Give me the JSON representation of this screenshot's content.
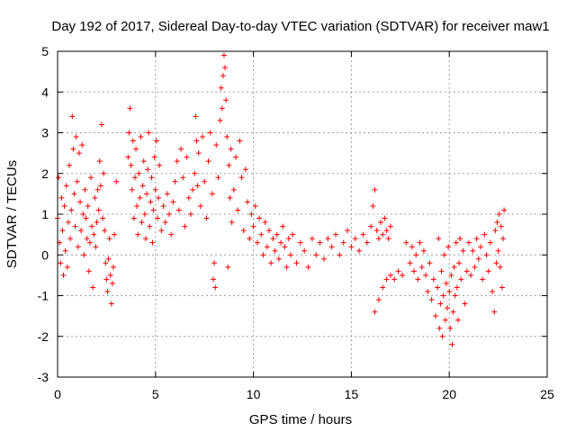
{
  "chart_data": {
    "type": "scatter",
    "title": "Day 192 of 2017, Sidereal Day-to-day VTEC variation (SDTVAR) for receiver maw1",
    "xlabel": "GPS time / hours",
    "ylabel": "SDTVAR / TECUs",
    "xlim": [
      0,
      25
    ],
    "ylim": [
      -3,
      5
    ],
    "xticks": [
      0,
      5,
      10,
      15,
      20,
      25
    ],
    "yticks": [
      -3,
      -2,
      -1,
      0,
      1,
      2,
      3,
      4,
      5
    ],
    "xtick_labels": [
      "0",
      "5",
      "10",
      "15",
      "20",
      "25"
    ],
    "ytick_labels": [
      "-3",
      "-2",
      "-1",
      "0",
      "1",
      "2",
      "3",
      "4",
      "5"
    ],
    "grid": true,
    "marker": "+",
    "color": "#ff0000",
    "series": [
      {
        "name": "maw1",
        "points": [
          [
            0.0,
            0.9
          ],
          [
            0.05,
            1.9
          ],
          [
            0.1,
            0.3
          ],
          [
            0.15,
            -0.2
          ],
          [
            0.2,
            1.4
          ],
          [
            0.25,
            0.6
          ],
          [
            0.3,
            -0.5
          ],
          [
            0.35,
            1.2
          ],
          [
            0.4,
            0.1
          ],
          [
            0.45,
            1.7
          ],
          [
            0.5,
            -0.3
          ],
          [
            0.55,
            0.8
          ],
          [
            0.6,
            2.2
          ],
          [
            0.65,
            0.4
          ],
          [
            0.7,
            1.1
          ],
          [
            0.75,
            3.4
          ],
          [
            0.8,
            2.6
          ],
          [
            0.85,
            1.5
          ],
          [
            0.9,
            0.7
          ],
          [
            0.95,
            2.9
          ],
          [
            1.0,
            1.8
          ],
          [
            1.05,
            0.2
          ],
          [
            1.1,
            2.5
          ],
          [
            1.15,
            1.3
          ],
          [
            1.2,
            0.6
          ],
          [
            1.25,
            2.7
          ],
          [
            1.3,
            1.0
          ],
          [
            1.35,
            0.0
          ],
          [
            1.4,
            1.6
          ],
          [
            1.45,
            0.9
          ],
          [
            1.5,
            0.4
          ],
          [
            1.55,
            1.2
          ],
          [
            1.6,
            -0.4
          ],
          [
            1.65,
            0.3
          ],
          [
            1.7,
            1.9
          ],
          [
            1.75,
            0.7
          ],
          [
            1.8,
            -0.8
          ],
          [
            1.85,
            0.5
          ],
          [
            1.9,
            1.4
          ],
          [
            1.95,
            0.2
          ],
          [
            2.0,
            0.8
          ],
          [
            2.05,
            1.6
          ],
          [
            2.1,
            1.1
          ],
          [
            2.15,
            2.3
          ],
          [
            2.2,
            1.7
          ],
          [
            2.25,
            3.2
          ],
          [
            2.3,
            0.9
          ],
          [
            2.35,
            2.0
          ],
          [
            2.4,
            0.6
          ],
          [
            2.45,
            -0.2
          ],
          [
            2.5,
            -0.6
          ],
          [
            2.55,
            -0.9
          ],
          [
            2.6,
            -0.1
          ],
          [
            2.65,
            0.4
          ],
          [
            2.7,
            -0.5
          ],
          [
            2.75,
            -1.2
          ],
          [
            2.8,
            -0.7
          ],
          [
            2.85,
            -0.3
          ],
          [
            2.9,
            0.5
          ],
          [
            3.0,
            1.8
          ],
          [
            3.6,
            2.4
          ],
          [
            3.65,
            3.0
          ],
          [
            3.7,
            3.6
          ],
          [
            3.75,
            2.2
          ],
          [
            3.8,
            1.6
          ],
          [
            3.85,
            2.8
          ],
          [
            3.9,
            0.9
          ],
          [
            3.95,
            1.9
          ],
          [
            4.0,
            2.6
          ],
          [
            4.05,
            1.2
          ],
          [
            4.1,
            0.5
          ],
          [
            4.15,
            2.0
          ],
          [
            4.2,
            1.4
          ],
          [
            4.25,
            2.9
          ],
          [
            4.3,
            0.8
          ],
          [
            4.35,
            1.7
          ],
          [
            4.4,
            2.3
          ],
          [
            4.45,
            1.0
          ],
          [
            4.5,
            0.4
          ],
          [
            4.55,
            1.5
          ],
          [
            4.6,
            2.1
          ],
          [
            4.65,
            3.0
          ],
          [
            4.7,
            0.7
          ],
          [
            4.75,
            1.3
          ],
          [
            4.8,
            1.9
          ],
          [
            4.85,
            0.3
          ],
          [
            4.9,
            1.1
          ],
          [
            4.95,
            2.4
          ],
          [
            5.0,
            1.6
          ],
          [
            5.05,
            2.8
          ],
          [
            5.1,
            0.9
          ],
          [
            5.15,
            1.4
          ],
          [
            5.2,
            2.2
          ],
          [
            5.3,
            0.6
          ],
          [
            5.4,
            1.2
          ],
          [
            5.5,
            0.8
          ],
          [
            5.6,
            1.5
          ],
          [
            5.7,
            1.0
          ],
          [
            5.8,
            0.5
          ],
          [
            5.9,
            1.3
          ],
          [
            6.0,
            1.8
          ],
          [
            6.1,
            2.3
          ],
          [
            6.2,
            1.1
          ],
          [
            6.3,
            2.6
          ],
          [
            6.4,
            1.9
          ],
          [
            6.5,
            0.7
          ],
          [
            6.6,
            2.4
          ],
          [
            6.7,
            1.4
          ],
          [
            6.8,
            1.0
          ],
          [
            6.9,
            1.6
          ],
          [
            7.0,
            2.0
          ],
          [
            7.05,
            3.4
          ],
          [
            7.1,
            2.8
          ],
          [
            7.15,
            1.7
          ],
          [
            7.2,
            2.5
          ],
          [
            7.3,
            1.2
          ],
          [
            7.4,
            2.9
          ],
          [
            7.5,
            1.8
          ],
          [
            7.6,
            0.9
          ],
          [
            7.7,
            2.3
          ],
          [
            7.8,
            3.0
          ],
          [
            7.9,
            1.5
          ],
          [
            7.95,
            -0.6
          ],
          [
            8.0,
            -0.2
          ],
          [
            8.05,
            -0.8
          ],
          [
            8.1,
            2.7
          ],
          [
            8.2,
            1.9
          ],
          [
            8.3,
            3.3
          ],
          [
            8.35,
            4.1
          ],
          [
            8.4,
            3.6
          ],
          [
            8.45,
            4.4
          ],
          [
            8.5,
            4.9
          ],
          [
            8.55,
            4.6
          ],
          [
            8.6,
            3.8
          ],
          [
            8.65,
            2.9
          ],
          [
            8.7,
            -0.3
          ],
          [
            8.75,
            2.2
          ],
          [
            8.8,
            1.4
          ],
          [
            8.85,
            2.6
          ],
          [
            8.9,
            0.8
          ],
          [
            9.0,
            1.6
          ],
          [
            9.1,
            2.4
          ],
          [
            9.2,
            1.1
          ],
          [
            9.3,
            2.8
          ],
          [
            9.4,
            1.9
          ],
          [
            9.5,
            0.6
          ],
          [
            9.6,
            2.1
          ],
          [
            9.7,
            1.3
          ],
          [
            9.8,
            0.4
          ],
          [
            9.9,
            1.0
          ],
          [
            10.0,
            0.7
          ],
          [
            10.1,
            1.2
          ],
          [
            10.2,
            0.3
          ],
          [
            10.3,
            0.9
          ],
          [
            10.4,
            0.5
          ],
          [
            10.5,
            0.0
          ],
          [
            10.6,
            0.8
          ],
          [
            10.7,
            0.2
          ],
          [
            10.8,
            0.6
          ],
          [
            10.9,
            -0.2
          ],
          [
            11.0,
            0.4
          ],
          [
            11.1,
            0.1
          ],
          [
            11.2,
            0.5
          ],
          [
            11.3,
            -0.1
          ],
          [
            11.4,
            0.3
          ],
          [
            11.5,
            0.7
          ],
          [
            11.6,
            0.2
          ],
          [
            11.7,
            -0.3
          ],
          [
            11.8,
            0.4
          ],
          [
            11.9,
            0.0
          ],
          [
            12.0,
            0.5
          ],
          [
            12.2,
            -0.2
          ],
          [
            12.4,
            0.3
          ],
          [
            12.6,
            0.1
          ],
          [
            12.8,
            -0.3
          ],
          [
            13.0,
            0.4
          ],
          [
            13.2,
            0.0
          ],
          [
            13.4,
            0.3
          ],
          [
            13.6,
            -0.1
          ],
          [
            13.8,
            0.4
          ],
          [
            14.0,
            0.2
          ],
          [
            14.2,
            0.5
          ],
          [
            14.4,
            0.0
          ],
          [
            14.6,
            0.3
          ],
          [
            14.8,
            0.6
          ],
          [
            15.0,
            0.2
          ],
          [
            15.2,
            0.4
          ],
          [
            15.4,
            0.1
          ],
          [
            15.6,
            0.5
          ],
          [
            15.8,
            0.3
          ],
          [
            16.0,
            0.7
          ],
          [
            16.1,
            1.2
          ],
          [
            16.2,
            1.6
          ],
          [
            16.3,
            0.6
          ],
          [
            16.4,
            0.4
          ],
          [
            16.5,
            0.8
          ],
          [
            16.6,
            0.5
          ],
          [
            16.7,
            0.9
          ],
          [
            16.8,
            0.6
          ],
          [
            16.9,
            0.4
          ],
          [
            17.0,
            0.7
          ],
          [
            16.2,
            -1.4
          ],
          [
            16.4,
            -1.1
          ],
          [
            16.6,
            -0.8
          ],
          [
            16.8,
            -0.6
          ],
          [
            17.0,
            -0.5
          ],
          [
            17.2,
            -0.6
          ],
          [
            17.4,
            -0.4
          ],
          [
            17.6,
            -0.5
          ],
          [
            17.8,
            0.3
          ],
          [
            18.0,
            -0.2
          ],
          [
            18.1,
            0.2
          ],
          [
            18.2,
            -0.4
          ],
          [
            18.3,
            0.0
          ],
          [
            18.4,
            -0.6
          ],
          [
            18.5,
            0.3
          ],
          [
            18.6,
            -0.3
          ],
          [
            18.7,
            0.1
          ],
          [
            18.8,
            -0.5
          ],
          [
            18.9,
            -0.9
          ],
          [
            19.0,
            -0.2
          ],
          [
            19.1,
            -1.1
          ],
          [
            19.2,
            -0.6
          ],
          [
            19.3,
            -1.5
          ],
          [
            19.4,
            -0.8
          ],
          [
            19.45,
            0.4
          ],
          [
            19.5,
            -1.8
          ],
          [
            19.55,
            -1.2
          ],
          [
            19.6,
            -0.4
          ],
          [
            19.65,
            -2.0
          ],
          [
            19.7,
            -1.0
          ],
          [
            19.75,
            0.0
          ],
          [
            19.8,
            -1.6
          ],
          [
            19.85,
            -0.7
          ],
          [
            19.9,
            -1.3
          ],
          [
            19.95,
            0.2
          ],
          [
            20.0,
            -0.9
          ],
          [
            20.05,
            -1.8
          ],
          [
            20.1,
            -0.5
          ],
          [
            20.15,
            -2.2
          ],
          [
            20.2,
            -1.4
          ],
          [
            20.25,
            -0.3
          ],
          [
            20.3,
            -1.0
          ],
          [
            20.35,
            0.3
          ],
          [
            20.4,
            -0.8
          ],
          [
            20.45,
            -1.6
          ],
          [
            20.5,
            -0.2
          ],
          [
            20.55,
            0.4
          ],
          [
            20.6,
            -0.6
          ],
          [
            20.7,
            0.1
          ],
          [
            20.8,
            -1.2
          ],
          [
            20.9,
            -0.4
          ],
          [
            21.0,
            0.3
          ],
          [
            21.1,
            -0.5
          ],
          [
            21.2,
            0.1
          ],
          [
            21.3,
            -0.3
          ],
          [
            21.4,
            0.4
          ],
          [
            21.5,
            -0.1
          ],
          [
            21.6,
            0.2
          ],
          [
            21.7,
            -0.6
          ],
          [
            21.8,
            0.5
          ],
          [
            21.9,
            0.0
          ],
          [
            22.0,
            -0.4
          ],
          [
            22.1,
            0.3
          ],
          [
            22.2,
            -0.9
          ],
          [
            22.3,
            -1.4
          ],
          [
            22.35,
            0.6
          ],
          [
            22.4,
            -0.2
          ],
          [
            22.45,
            0.8
          ],
          [
            22.5,
            0.1
          ],
          [
            22.55,
            1.0
          ],
          [
            22.6,
            -0.3
          ],
          [
            22.65,
            0.7
          ],
          [
            22.7,
            -0.8
          ],
          [
            22.75,
            0.4
          ],
          [
            22.8,
            1.1
          ]
        ]
      }
    ]
  }
}
